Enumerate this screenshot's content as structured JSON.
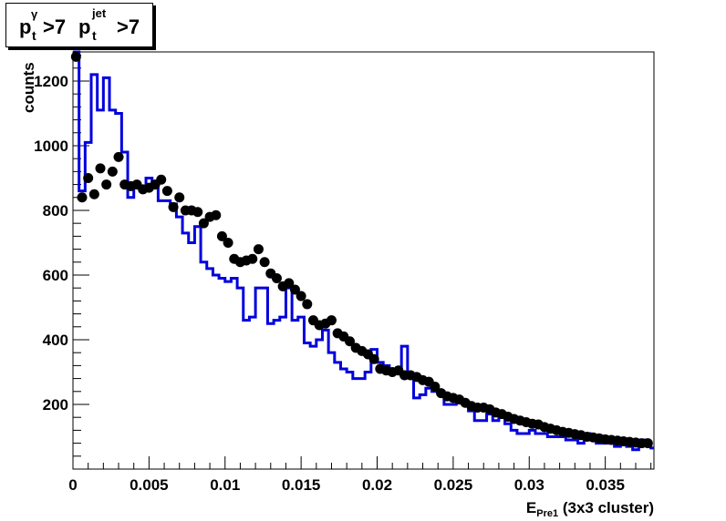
{
  "title": {
    "p1": "p",
    "p1_sub": "t",
    "p1_sup": "γ",
    "cut1": ">7",
    "p2": "p",
    "p2_sub": "t",
    "p2_sup": "jet",
    "cut2": ">7"
  },
  "chart_data": {
    "type": "histogram",
    "xlabel_main": "E",
    "xlabel_sub": "Pre1",
    "xlabel_rest": "(3x3 cluster)",
    "ylabel": "counts",
    "xlim": [
      0,
      0.0382
    ],
    "ylim": [
      0,
      1290
    ],
    "x_ticks": [
      "0",
      "0.005",
      "0.01",
      "0.015",
      "0.02",
      "0.025",
      "0.03",
      "0.035"
    ],
    "y_ticks": [
      "200",
      "400",
      "600",
      "800",
      "1000",
      "1200"
    ],
    "bin_width": 0.0004,
    "series": [
      {
        "style": "step",
        "color": "#0000dd",
        "values": [
          1290,
          860,
          1010,
          1220,
          1110,
          1210,
          1110,
          1100,
          980,
          840,
          870,
          860,
          900,
          880,
          830,
          830,
          820,
          780,
          730,
          700,
          750,
          640,
          620,
          600,
          590,
          580,
          590,
          560,
          460,
          470,
          560,
          560,
          450,
          460,
          470,
          560,
          460,
          470,
          390,
          380,
          400,
          430,
          360,
          330,
          310,
          300,
          280,
          280,
          300,
          370,
          330,
          320,
          310,
          300,
          380,
          290,
          220,
          230,
          250,
          240,
          240,
          200,
          200,
          220,
          200,
          180,
          150,
          150,
          170,
          150,
          160,
          140,
          120,
          110,
          110,
          120,
          110,
          110,
          100,
          100,
          100,
          90,
          90,
          80,
          110,
          90,
          80,
          80,
          80,
          70,
          75,
          70,
          60,
          90,
          75,
          65
        ]
      },
      {
        "style": "markers",
        "color": "#000000",
        "values": [
          1275,
          840,
          900,
          850,
          930,
          880,
          920,
          965,
          880,
          875,
          880,
          865,
          870,
          880,
          895,
          860,
          810,
          840,
          800,
          800,
          795,
          760,
          780,
          785,
          720,
          700,
          650,
          640,
          645,
          650,
          680,
          640,
          605,
          590,
          565,
          575,
          555,
          535,
          510,
          460,
          445,
          450,
          460,
          420,
          410,
          395,
          375,
          365,
          355,
          340,
          310,
          305,
          300,
          305,
          290,
          290,
          285,
          275,
          270,
          255,
          235,
          225,
          220,
          215,
          205,
          195,
          190,
          190,
          185,
          175,
          170,
          162,
          155,
          150,
          145,
          140,
          138,
          130,
          125,
          120,
          115,
          112,
          108,
          105,
          100,
          98,
          95,
          92,
          90,
          88,
          86,
          84,
          82,
          80,
          80,
          78
        ]
      }
    ]
  }
}
